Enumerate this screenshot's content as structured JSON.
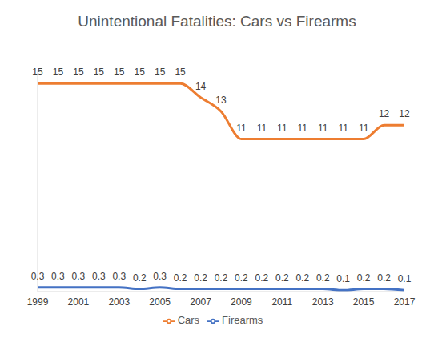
{
  "chart_data": {
    "type": "line",
    "title": "Unintentional Fatalities: Cars vs Firearms",
    "x": [
      1999,
      2000,
      2001,
      2002,
      2003,
      2004,
      2005,
      2006,
      2007,
      2008,
      2009,
      2010,
      2011,
      2012,
      2013,
      2014,
      2015,
      2016,
      2017
    ],
    "xlim": [
      1999,
      2017
    ],
    "xticks": [
      1999,
      2001,
      2003,
      2005,
      2007,
      2009,
      2011,
      2013,
      2015,
      2017
    ],
    "ylim": [
      0,
      16
    ],
    "tick_labels": "x",
    "grid": false,
    "legend": "bottom",
    "data_labels": true,
    "marker": "none",
    "line_style": "solid",
    "series": [
      {
        "name": "Firearms",
        "color": "#4472c4",
        "values": [
          0.3,
          0.3,
          0.3,
          0.3,
          0.3,
          0.2,
          0.3,
          0.2,
          0.2,
          0.2,
          0.2,
          0.2,
          0.2,
          0.2,
          0.2,
          0.1,
          0.2,
          0.2,
          0.1
        ]
      },
      {
        "name": "Cars",
        "color": "#ed7d31",
        "values": [
          15,
          15,
          15,
          15,
          15,
          15,
          15,
          15,
          14,
          13,
          11,
          11,
          11,
          11,
          11,
          11,
          11,
          12,
          12
        ]
      }
    ]
  }
}
